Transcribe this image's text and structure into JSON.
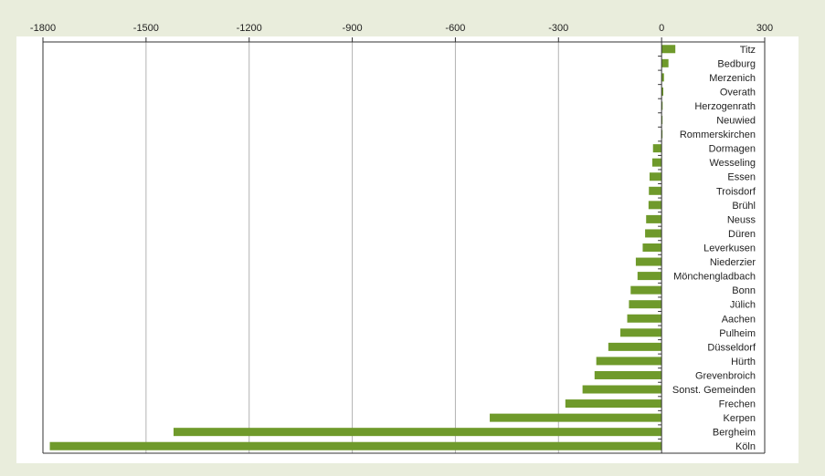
{
  "chart_data": {
    "type": "bar",
    "orientation": "horizontal",
    "title": "",
    "xlabel": "",
    "ylabel": "",
    "xlim": [
      -1800,
      300
    ],
    "x_ticks": [
      -1800,
      -1500,
      -1200,
      -900,
      -600,
      -300,
      0,
      300
    ],
    "x_tick_labels": [
      "-1800",
      "-1500",
      "-1200",
      "-900",
      "-600",
      "-300",
      "0",
      "300"
    ],
    "x_axis_position": "top",
    "grid": "vertical",
    "legend": "none",
    "bar_color": "#6f9a2b",
    "categories": [
      "Titz",
      "Bedburg",
      "Merzenich",
      "Overath",
      "Herzogenrath",
      "Neuwied",
      "Rommerskirchen",
      "Dormagen",
      "Wesseling",
      "Essen",
      "Troisdorf",
      "Brühl",
      "Neuss",
      "Düren",
      "Leverkusen",
      "Niederzier",
      "Mönchengladbach",
      "Bonn",
      "Jülich",
      "Aachen",
      "Pulheim",
      "Düsseldorf",
      "Hürth",
      "Grevenbroich",
      "Sonst. Gemeinden",
      "Frechen",
      "Kerpen",
      "Bergheim",
      "Köln"
    ],
    "values": [
      40,
      20,
      7,
      5,
      3,
      2,
      1,
      -25,
      -27,
      -35,
      -37,
      -38,
      -45,
      -48,
      -55,
      -75,
      -70,
      -90,
      -95,
      -100,
      -120,
      -155,
      -190,
      -195,
      -230,
      -280,
      -500,
      -1420,
      -1780
    ]
  }
}
